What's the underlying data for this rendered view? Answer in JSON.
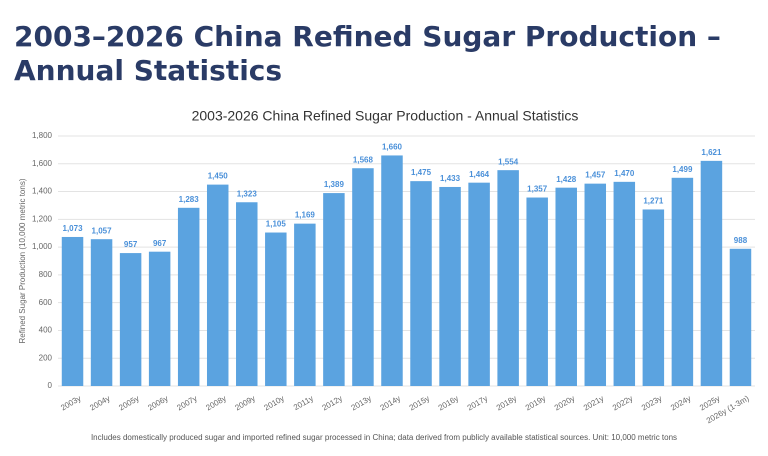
{
  "header": {
    "title": "2003–2026 China Refined Sugar Production – Annual Statistics"
  },
  "chart_data": {
    "type": "bar",
    "title": "2003-2026 China Refined Sugar Production - Annual Statistics",
    "y_label": "Refined Sugar Production (10,000 metric tons)",
    "footnote": "Includes domestically produced sugar and imported refined sugar processed in China; data derived from publicly available statistical sources. Unit: 10,000 metric tons",
    "categories": [
      "2003y",
      "2004y",
      "2005y",
      "2006y",
      "2007y",
      "2008y",
      "2009y",
      "2010y",
      "2011y",
      "2012y",
      "2013y",
      "2014y",
      "2015y",
      "2016y",
      "2017y",
      "2018y",
      "2019y",
      "2020y",
      "2021y",
      "2022y",
      "2023y",
      "2024y",
      "2025y",
      "2026y (1-3m)"
    ],
    "values": [
      1073,
      1057,
      957,
      967,
      1283,
      1450,
      1323,
      1105,
      1169,
      1389,
      1568,
      1660,
      1475,
      1433,
      1464,
      1554,
      1357,
      1428,
      1457,
      1470,
      1271,
      1499,
      1621,
      988
    ],
    "value_labels": [
      "1,073",
      "1,057",
      "957",
      "967",
      "1,283",
      "1,450",
      "1,323",
      "1,105",
      "1,169",
      "1,389",
      "1,568",
      "1,660",
      "1,475",
      "1,433",
      "1,464",
      "1,554",
      "1,357",
      "1,428",
      "1,457",
      "1,470",
      "1,271",
      "1,499",
      "1,621",
      "988"
    ],
    "color": "#5ba3e0",
    "ylim": [
      0,
      1800
    ],
    "yticks": [
      0,
      200,
      400,
      600,
      800,
      {
        "value": 1000,
        "label": "1,000"
      },
      {
        "value": 1200,
        "label": "1,200"
      },
      {
        "value": 1400,
        "label": "1,400"
      },
      {
        "value": 1600,
        "label": "1,600"
      },
      {
        "value": 1800,
        "label": "1,800"
      }
    ],
    "grid": true
  }
}
